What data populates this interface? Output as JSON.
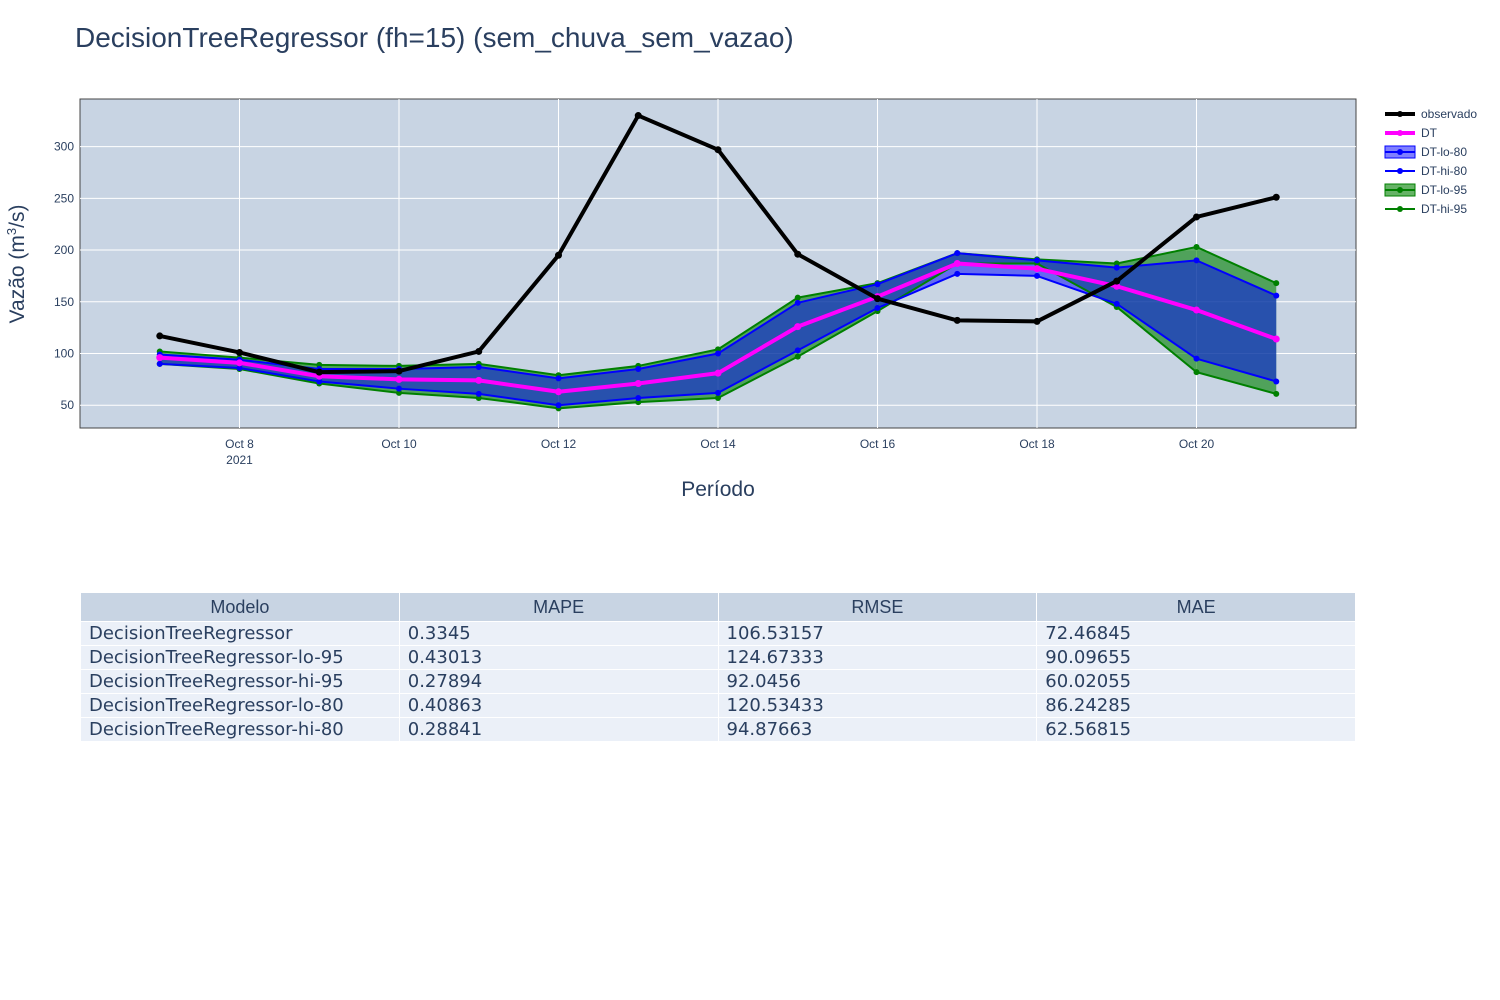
{
  "chart_data": {
    "type": "line",
    "title": "DecisionTreeRegressor (fh=15) (sem_chuva_sem_vazao)",
    "xlabel": "Período",
    "ylabel": "Vazão (m³/s)",
    "ylabel_main": "Vazão (m",
    "ylabel_sup": "3",
    "ylabel_end": "/s)",
    "x": [
      "2021-10-07",
      "2021-10-08",
      "2021-10-09",
      "2021-10-10",
      "2021-10-11",
      "2021-10-12",
      "2021-10-13",
      "2021-10-14",
      "2021-10-15",
      "2021-10-16",
      "2021-10-17",
      "2021-10-18",
      "2021-10-19",
      "2021-10-20",
      "2021-10-21"
    ],
    "xlim": [
      "2021-10-06",
      "2021-10-22"
    ],
    "ylim": [
      28,
      346
    ],
    "x_ticks": [
      "2021-10-08",
      "2021-10-10",
      "2021-10-12",
      "2021-10-14",
      "2021-10-16",
      "2021-10-18",
      "2021-10-20"
    ],
    "x_tick_labels": [
      "Oct 8",
      "Oct 10",
      "Oct 12",
      "Oct 14",
      "Oct 16",
      "Oct 18",
      "Oct 20"
    ],
    "x_year_label": "2021",
    "y_ticks": [
      50,
      100,
      150,
      200,
      250,
      300
    ],
    "y_tick_labels": [
      "50",
      "100",
      "150",
      "200",
      "250",
      "300"
    ],
    "grid": true,
    "legend_position": "right",
    "series": [
      {
        "name": "observado",
        "color": "#000000",
        "width": 4,
        "values": [
          117,
          101,
          82,
          83,
          102,
          195,
          330,
          297,
          196,
          153,
          132,
          131,
          170,
          232,
          251
        ]
      },
      {
        "name": "DT",
        "color": "#ff00ff",
        "width": 4,
        "values": [
          96,
          91,
          78,
          75,
          74,
          63,
          71,
          81,
          126,
          155,
          187,
          182,
          165,
          142,
          114
        ]
      },
      {
        "name": "DT-lo-80",
        "color": "#0000ff",
        "fill_color": "rgba(0,0,255,0.5)",
        "width": 2,
        "values": [
          90,
          86,
          73,
          66,
          61,
          50,
          57,
          62,
          103,
          144,
          177,
          175,
          148,
          95,
          73
        ]
      },
      {
        "name": "DT-hi-80",
        "color": "#0000ff",
        "width": 2,
        "values": [
          99,
          94,
          85,
          85,
          87,
          76,
          85,
          100,
          149,
          167,
          197,
          190,
          183,
          190,
          156
        ]
      },
      {
        "name": "DT-lo-95",
        "color": "#008000",
        "fill_color": "rgba(0,128,0,0.6)",
        "width": 2,
        "values": [
          90,
          85,
          71,
          62,
          57,
          47,
          53,
          57,
          97,
          141,
          187,
          187,
          145,
          82,
          61
        ]
      },
      {
        "name": "DT-hi-95",
        "color": "#008000",
        "width": 2,
        "values": [
          102,
          96,
          89,
          88,
          90,
          79,
          88,
          104,
          154,
          168,
          197,
          191,
          187,
          203,
          168
        ]
      }
    ]
  },
  "table": {
    "headers": [
      "Modelo",
      "MAPE",
      "RMSE",
      "MAE"
    ],
    "rows": [
      [
        "DecisionTreeRegressor",
        "0.3345",
        "106.53157",
        "72.46845"
      ],
      [
        "DecisionTreeRegressor-lo-95",
        "0.43013",
        "124.67333",
        "90.09655"
      ],
      [
        "DecisionTreeRegressor-hi-95",
        "0.27894",
        "92.0456",
        "60.02055"
      ],
      [
        "DecisionTreeRegressor-lo-80",
        "0.40863",
        "120.53433",
        "86.24285"
      ],
      [
        "DecisionTreeRegressor-hi-80",
        "0.28841",
        "94.87663",
        "62.56815"
      ]
    ]
  }
}
